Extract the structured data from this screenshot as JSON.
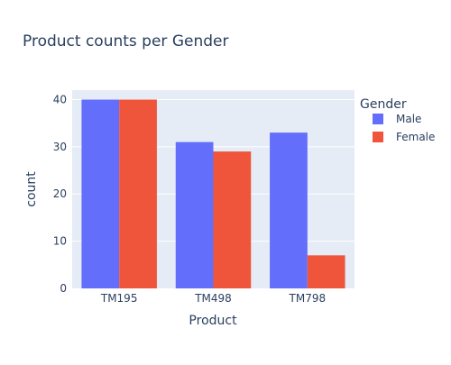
{
  "chart_data": {
    "type": "bar",
    "barmode": "group",
    "title": "Product counts per Gender",
    "xlabel": "Product",
    "ylabel": "count",
    "categories": [
      "TM195",
      "TM498",
      "TM798"
    ],
    "series": [
      {
        "name": "Male",
        "values": [
          40,
          31,
          33
        ],
        "color": "#636efa"
      },
      {
        "name": "Female",
        "values": [
          40,
          29,
          7
        ],
        "color": "#ef553b"
      }
    ],
    "ylim": [
      0,
      42
    ],
    "yticks": [
      0,
      10,
      20,
      30,
      40
    ],
    "grid": true,
    "legend": {
      "title": "Gender",
      "placement": "right"
    },
    "colors": {
      "plot_bg": "#e5ecf6",
      "grid": "#ffffff",
      "text": "#2a3f5f"
    }
  }
}
